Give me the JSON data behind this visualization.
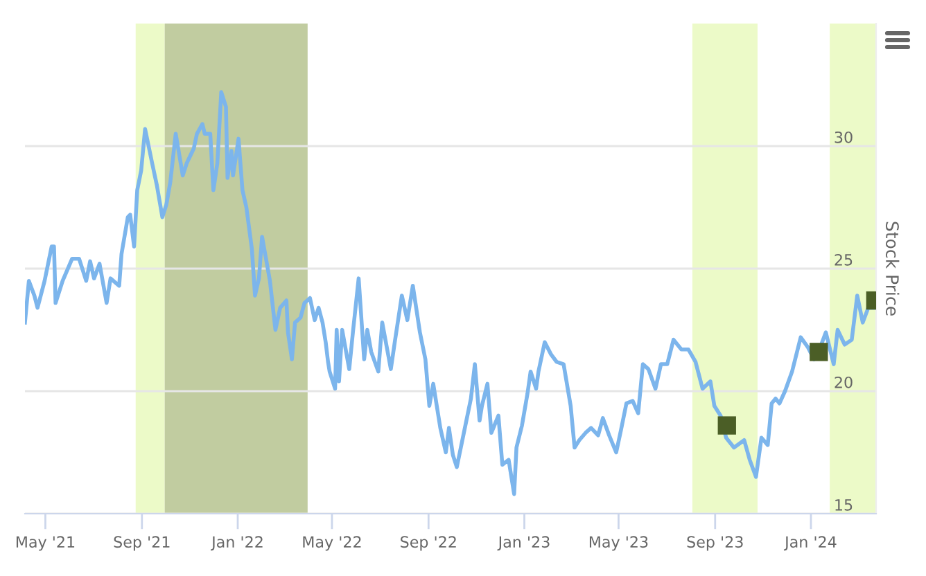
{
  "chart_data": {
    "type": "line",
    "ylabel": "Stock Price",
    "xlim": [
      "2021-04-05",
      "2024-03-24"
    ],
    "xticks": [
      {
        "value": "2021-05-01",
        "label": "May '21"
      },
      {
        "value": "2021-09-01",
        "label": "Sep '21"
      },
      {
        "value": "2022-01-01",
        "label": "Jan '22"
      },
      {
        "value": "2022-05-01",
        "label": "May '22"
      },
      {
        "value": "2022-09-01",
        "label": "Sep '22"
      },
      {
        "value": "2023-01-01",
        "label": "Jan '23"
      },
      {
        "value": "2023-05-01",
        "label": "May '23"
      },
      {
        "value": "2023-09-01",
        "label": "Sep '23"
      },
      {
        "value": "2024-01-01",
        "label": "Jan '24"
      }
    ],
    "ylim": [
      15,
      35
    ],
    "yticks": [
      15,
      20,
      25,
      30
    ],
    "grid": "y",
    "legend": false,
    "bands": [
      {
        "axis": "x",
        "from": "2021-08-24",
        "to": "2021-09-30",
        "color": "#ecfac8"
      },
      {
        "axis": "x",
        "from": "2021-09-30",
        "to": "2022-03-31",
        "color": "#c1cca0"
      },
      {
        "axis": "x",
        "from": "2023-08-03",
        "to": "2023-10-25",
        "color": "#ecfac8"
      },
      {
        "axis": "x",
        "from": "2024-01-25",
        "to": "2024-03-24",
        "color": "#ecfac8"
      }
    ],
    "series": [
      {
        "color": "#7cb5ec",
        "marker": "none",
        "line_style": "solid",
        "x": [
          "2021-04-05",
          "2021-04-10",
          "2021-04-17",
          "2021-04-21",
          "2021-04-30",
          "2021-05-09",
          "2021-05-12",
          "2021-05-14",
          "2021-05-23",
          "2021-06-04",
          "2021-06-13",
          "2021-06-22",
          "2021-06-27",
          "2021-07-02",
          "2021-07-09",
          "2021-07-18",
          "2021-07-23",
          "2021-08-03",
          "2021-08-06",
          "2021-08-14",
          "2021-08-17",
          "2021-08-22",
          "2021-08-26",
          "2021-08-31",
          "2021-09-05",
          "2021-09-14",
          "2021-09-20",
          "2021-09-27",
          "2021-10-02",
          "2021-10-07",
          "2021-10-14",
          "2021-10-23",
          "2021-10-28",
          "2021-11-06",
          "2021-11-10",
          "2021-11-17",
          "2021-11-20",
          "2021-11-27",
          "2021-12-01",
          "2021-12-06",
          "2021-12-11",
          "2021-12-17",
          "2021-12-19",
          "2021-12-24",
          "2021-12-26",
          "2022-01-02",
          "2022-01-07",
          "2022-01-12",
          "2022-01-19",
          "2022-01-23",
          "2022-01-28",
          "2022-02-01",
          "2022-02-06",
          "2022-02-11",
          "2022-02-18",
          "2022-02-24",
          "2022-03-04",
          "2022-03-06",
          "2022-03-11",
          "2022-03-15",
          "2022-03-22",
          "2022-03-27",
          "2022-04-03",
          "2022-04-09",
          "2022-04-14",
          "2022-04-19",
          "2022-04-23",
          "2022-04-26",
          "2022-04-28",
          "2022-05-05",
          "2022-05-07",
          "2022-05-10",
          "2022-05-14",
          "2022-05-23",
          "2022-05-28",
          "2022-06-04",
          "2022-06-11",
          "2022-06-15",
          "2022-06-20",
          "2022-06-29",
          "2022-07-04",
          "2022-07-15",
          "2022-07-20",
          "2022-07-29",
          "2022-08-05",
          "2022-08-12",
          "2022-08-21",
          "2022-08-28",
          "2022-09-02",
          "2022-09-07",
          "2022-09-16",
          "2022-09-23",
          "2022-09-27",
          "2022-10-02",
          "2022-10-07",
          "2022-10-16",
          "2022-10-25",
          "2022-10-30",
          "2022-11-05",
          "2022-11-08",
          "2022-11-15",
          "2022-11-20",
          "2022-11-29",
          "2022-12-04",
          "2022-12-12",
          "2022-12-19",
          "2022-12-22",
          "2022-12-29",
          "2023-01-05",
          "2023-01-09",
          "2023-01-16",
          "2023-01-19",
          "2023-01-27",
          "2023-02-04",
          "2023-02-11",
          "2023-02-20",
          "2023-03-01",
          "2023-03-06",
          "2023-03-12",
          "2023-03-20",
          "2023-03-27",
          "2023-04-05",
          "2023-04-11",
          "2023-04-19",
          "2023-04-28",
          "2023-05-04",
          "2023-05-11",
          "2023-05-19",
          "2023-05-26",
          "2023-06-01",
          "2023-06-08",
          "2023-06-17",
          "2023-06-24",
          "2023-07-02",
          "2023-07-10",
          "2023-07-20",
          "2023-07-29",
          "2023-08-07",
          "2023-08-16",
          "2023-08-26",
          "2023-08-31",
          "2023-09-08",
          "2023-09-15",
          "2023-09-25",
          "2023-10-08",
          "2023-10-15",
          "2023-10-23",
          "2023-10-30",
          "2023-11-07",
          "2023-11-12",
          "2023-11-17",
          "2023-11-22",
          "2023-11-29",
          "2023-12-08",
          "2023-12-19",
          "2023-12-28",
          "2024-01-05",
          "2024-01-13",
          "2024-01-20",
          "2024-01-30",
          "2024-02-04",
          "2024-02-13",
          "2024-02-22",
          "2024-02-29",
          "2024-03-07",
          "2024-03-14",
          "2024-03-21"
        ],
        "values": [
          22.8,
          24.5,
          23.9,
          23.4,
          24.5,
          25.9,
          25.9,
          23.6,
          24.5,
          25.4,
          25.4,
          24.5,
          25.3,
          24.6,
          25.2,
          23.6,
          24.6,
          24.3,
          25.6,
          27.1,
          27.2,
          25.9,
          28.2,
          29.0,
          30.7,
          29.3,
          28.4,
          27.1,
          27.6,
          28.5,
          30.5,
          28.8,
          29.3,
          29.9,
          30.5,
          30.9,
          30.5,
          30.5,
          28.2,
          29.3,
          32.2,
          31.6,
          28.7,
          29.8,
          28.8,
          30.3,
          28.2,
          27.5,
          25.8,
          23.9,
          24.6,
          26.3,
          25.4,
          24.5,
          22.5,
          23.4,
          23.7,
          22.4,
          21.3,
          22.8,
          23.0,
          23.6,
          23.8,
          22.9,
          23.4,
          22.8,
          22.0,
          21.2,
          20.8,
          20.1,
          22.5,
          20.4,
          22.5,
          20.9,
          22.5,
          24.6,
          21.3,
          22.5,
          21.6,
          20.8,
          22.8,
          20.9,
          22.0,
          23.9,
          22.9,
          24.3,
          22.4,
          21.3,
          19.4,
          20.3,
          18.5,
          17.5,
          18.5,
          17.4,
          16.9,
          18.3,
          19.7,
          21.1,
          18.8,
          19.4,
          20.3,
          18.3,
          19.0,
          17.0,
          17.2,
          15.8,
          17.7,
          18.6,
          19.9,
          20.8,
          20.1,
          20.8,
          22.0,
          21.5,
          21.2,
          21.1,
          19.4,
          17.7,
          18.0,
          18.3,
          18.5,
          18.2,
          18.9,
          18.2,
          17.5,
          18.4,
          19.5,
          19.6,
          19.1,
          21.1,
          20.9,
          20.1,
          21.1,
          21.1,
          22.1,
          21.7,
          21.7,
          21.2,
          20.1,
          20.4,
          19.4,
          19.0,
          18.1,
          17.7,
          18.0,
          17.2,
          16.5,
          18.1,
          17.8,
          19.5,
          19.7,
          19.5,
          20.0,
          20.8,
          22.2,
          21.8,
          21.3,
          21.8,
          22.4,
          21.1,
          22.5,
          21.9,
          22.1,
          23.9,
          22.8,
          23.4,
          23.4
        ]
      },
      {
        "type": "scatter",
        "color": "#4b5e26",
        "marker": "square",
        "x": [
          "2023-09-16",
          "2024-01-11",
          "2024-03-23"
        ],
        "values": [
          18.6,
          21.6,
          23.7
        ]
      }
    ]
  }
}
